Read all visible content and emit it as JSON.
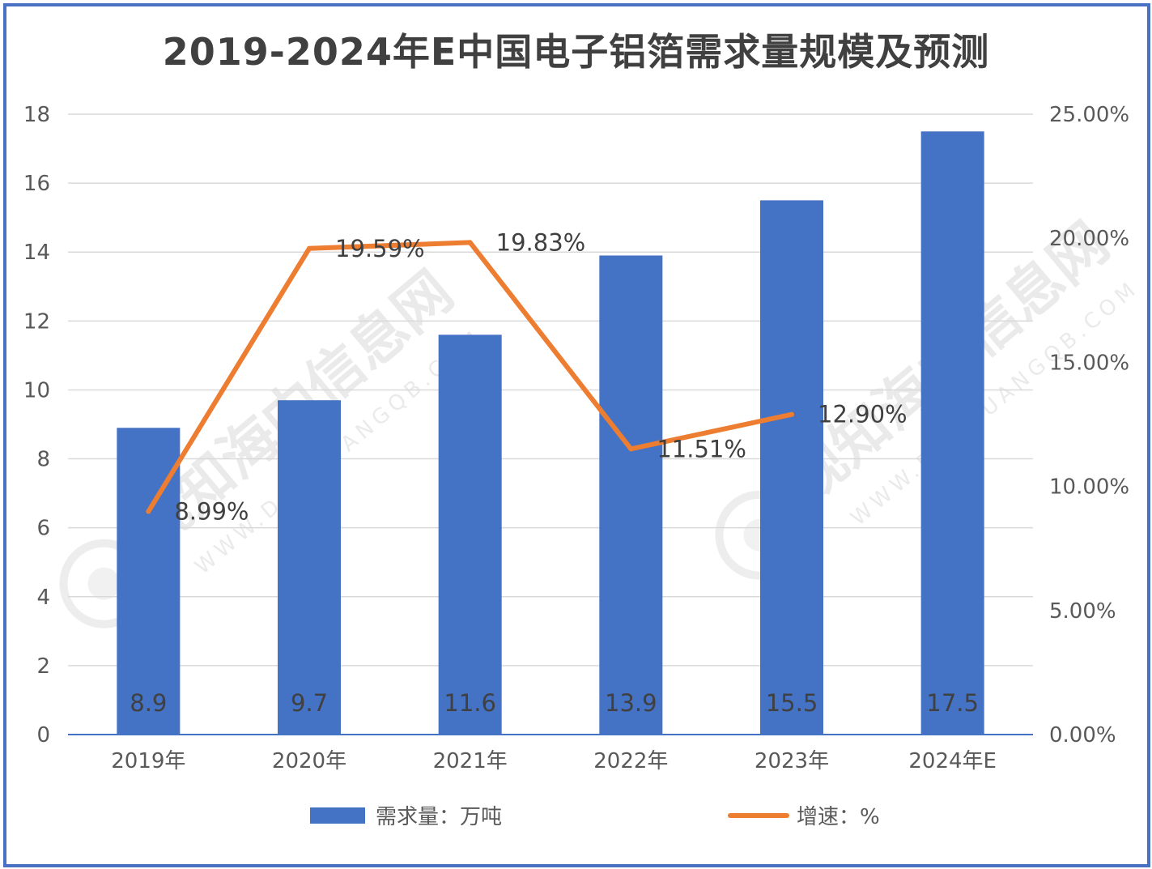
{
  "chart_data": {
    "type": "bar",
    "title": "2019-2024年E中国电子铝箔需求量规模及预测",
    "categories": [
      "2019年",
      "2020年",
      "2021年",
      "2022年",
      "2023年",
      "2024年E"
    ],
    "series": [
      {
        "name": "需求量：万吨",
        "type": "bar",
        "axis": "left",
        "color": "#4472c4",
        "values": [
          8.9,
          9.7,
          11.6,
          13.9,
          15.5,
          17.5
        ],
        "labels": [
          "8.9",
          "9.7",
          "11.6",
          "13.9",
          "15.5",
          "17.5"
        ]
      },
      {
        "name": "增速：%",
        "type": "line",
        "axis": "right",
        "color": "#ed7d31",
        "values": [
          8.99,
          19.59,
          19.83,
          11.51,
          12.9,
          null
        ],
        "labels": [
          "8.99%",
          "19.59%",
          "19.83%",
          "11.51%",
          "12.90%",
          null
        ]
      }
    ],
    "y_left": {
      "min": 0,
      "max": 18,
      "ticks": [
        "0",
        "2",
        "4",
        "6",
        "8",
        "10",
        "12",
        "14",
        "16",
        "18"
      ]
    },
    "y_right": {
      "min": 0,
      "max": 25,
      "ticks": [
        "0.00%",
        "5.00%",
        "10.00%",
        "15.00%",
        "20.00%",
        "25.00%"
      ]
    },
    "grid": true,
    "legend_position": "bottom"
  },
  "colors": {
    "frame": "#4a72c4",
    "grid": "#d9d9d9",
    "axis": "#4472c4"
  },
  "watermark": {
    "brand": "观知海内信息网",
    "url": "WWW.DONGUANGQB.COM"
  }
}
